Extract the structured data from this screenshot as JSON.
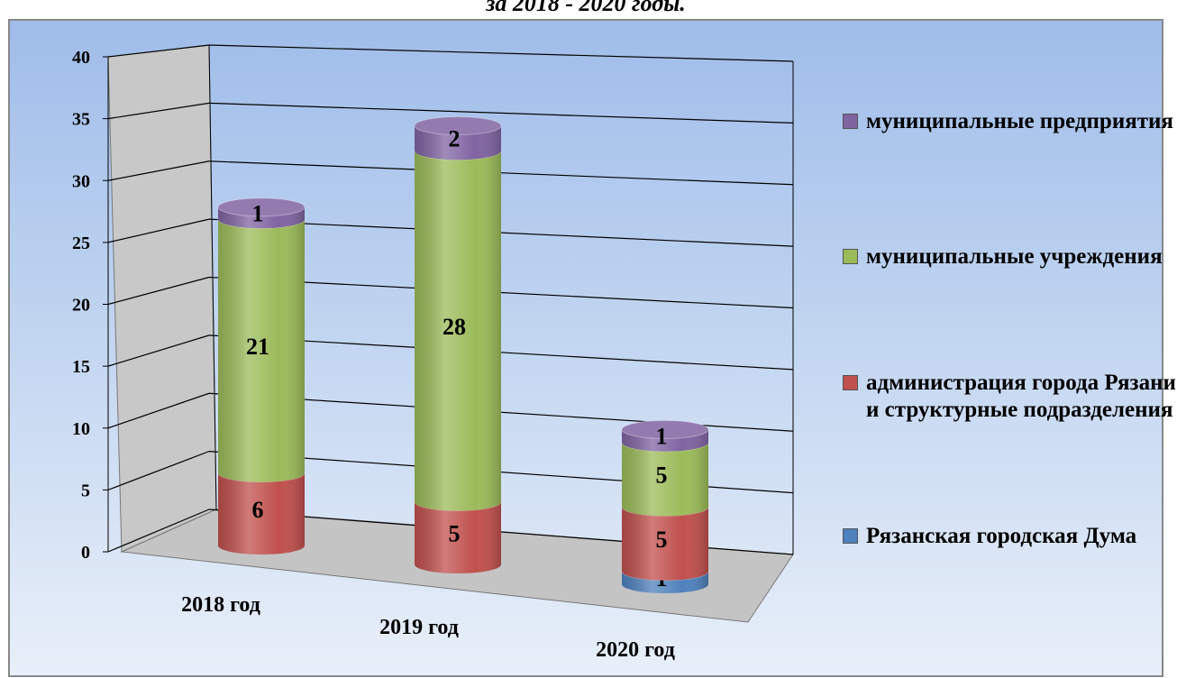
{
  "chart_data": {
    "type": "bar3d_stacked_cylinder",
    "title": "за 2018 - 2020 годы.",
    "categories": [
      "2018 год",
      "2019 год",
      "2020 год"
    ],
    "ylim": [
      0,
      40
    ],
    "yticks": [
      0,
      5,
      10,
      15,
      20,
      25,
      30,
      35,
      40
    ],
    "grid": true,
    "legend_position": "right",
    "series": [
      {
        "name": "Рязанская городская Дума",
        "color": "#4f81bd",
        "values": [
          null,
          null,
          1
        ]
      },
      {
        "name": "администрация города Рязани и структурные подразделения",
        "color": "#c0504d",
        "values": [
          6,
          5,
          5
        ]
      },
      {
        "name": "муниципальные учреждения",
        "color": "#9bbb59",
        "values": [
          21,
          28,
          5
        ]
      },
      {
        "name": "муниципальные предприятия",
        "color": "#8064a2",
        "values": [
          1,
          2,
          1
        ]
      }
    ]
  }
}
